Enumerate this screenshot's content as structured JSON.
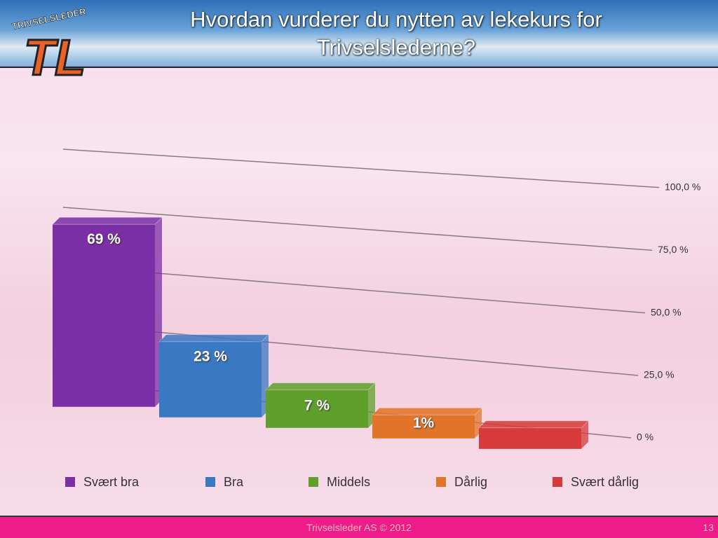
{
  "logo": {
    "tagline": "TRIVSELSLEDER",
    "mark": "TL"
  },
  "chart_data": {
    "type": "bar",
    "title": "Hvordan vurderer du nytten av lekekurs for Trivselslederne?",
    "categories": [
      "Svært bra",
      "Bra",
      "Middels",
      "Dårlig",
      "Svært dårlig"
    ],
    "values": [
      69,
      23,
      7,
      1,
      0
    ],
    "value_labels": [
      "69 %",
      "23 %",
      "7 %",
      "1%",
      null
    ],
    "colors": [
      "#7b2fa6",
      "#3b78c2",
      "#5fa02c",
      "#e2742a",
      "#d63a3a"
    ],
    "ylim": [
      0,
      100
    ],
    "yticks": [
      {
        "value": 0,
        "label": "0 %"
      },
      {
        "value": 25,
        "label": "25,0 %"
      },
      {
        "value": 50,
        "label": "50,0 %"
      },
      {
        "value": 75,
        "label": "75,0 %"
      },
      {
        "value": 100,
        "label": "100,0 %"
      }
    ],
    "grid": true,
    "legend": "bottom"
  },
  "footer": {
    "text": "Trivselsleder AS  © 2012",
    "page": "13"
  }
}
